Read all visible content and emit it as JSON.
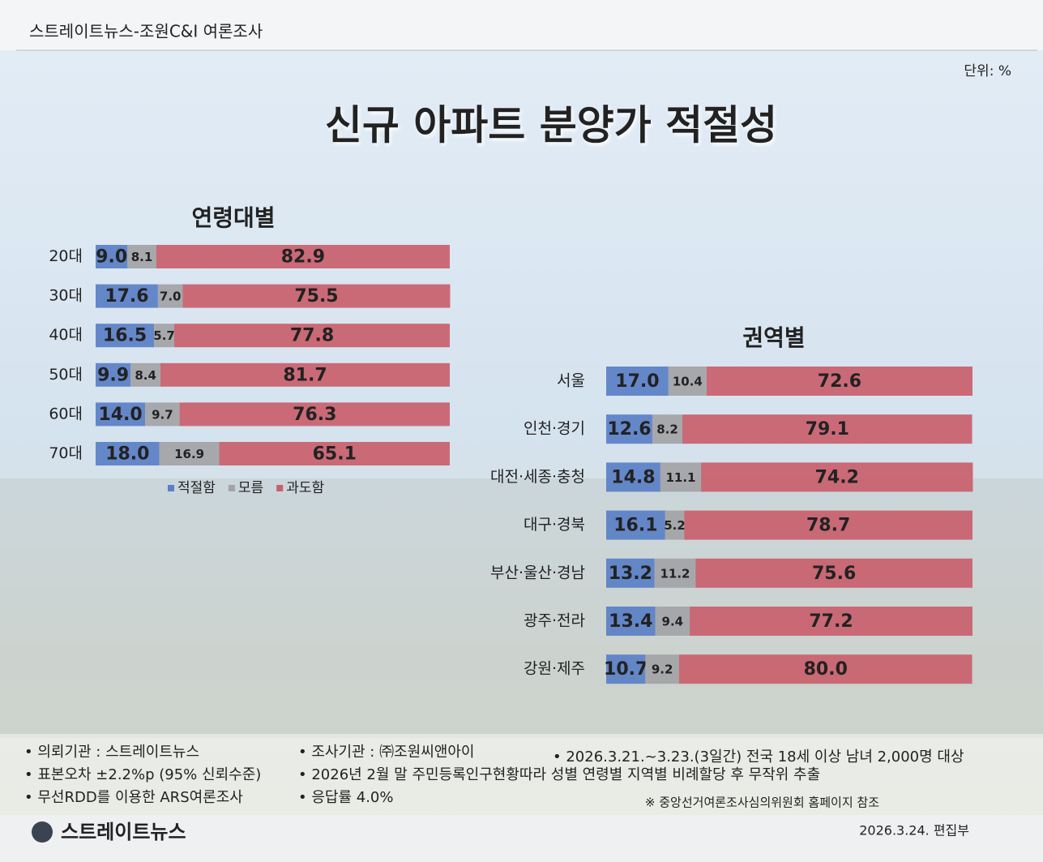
{
  "header": "스트레이트뉴스-조원C&I 여론조사",
  "unit": "단위: %",
  "title": "신규 아파트 분양가 적절성",
  "chart_data": [
    {
      "type": "stacked-bar",
      "title": "연령대별",
      "categories": [
        "20대",
        "30대",
        "40대",
        "50대",
        "60대",
        "70대"
      ],
      "xlim": [
        0,
        100
      ],
      "series": [
        {
          "name": "적절함",
          "color": "#5a7fc6",
          "values": [
            9.0,
            17.6,
            16.5,
            9.9,
            14.0,
            18.0
          ],
          "value_labels": [
            "9.0",
            "17.6",
            "16.5",
            "9.9",
            "14.0",
            "18.0"
          ]
        },
        {
          "name": "모름",
          "color": "#a3a3a6",
          "values": [
            8.1,
            7.0,
            5.7,
            8.4,
            9.7,
            16.9
          ],
          "value_labels": [
            "8.1",
            "7.0",
            "5.7",
            "8.4",
            "9.7",
            "16.9"
          ]
        },
        {
          "name": "과도함",
          "color": "#c95f6c",
          "values": [
            82.9,
            75.5,
            77.8,
            81.7,
            76.3,
            65.1
          ],
          "value_labels": [
            "82.9",
            "75.5",
            "77.8",
            "81.7",
            "76.3",
            "65.1"
          ]
        }
      ]
    },
    {
      "type": "stacked-bar",
      "title": "권역별",
      "categories": [
        "서울",
        "인천·경기",
        "대전·세종·충청",
        "대구·경북",
        "부산·울산·경남",
        "광주·전라",
        "강원·제주"
      ],
      "xlim": [
        0,
        100
      ],
      "series": [
        {
          "color": "#5a7fc6",
          "values": [
            17.0,
            12.6,
            14.8,
            16.1,
            13.2,
            13.4,
            10.7
          ],
          "value_labels": [
            "17.0",
            "12.6",
            "14.8",
            "16.1",
            "13.2",
            "13.4",
            "10.7"
          ]
        },
        {
          "color": "#a3a3a6",
          "values": [
            10.4,
            8.2,
            11.1,
            5.2,
            11.2,
            9.4,
            9.2
          ],
          "value_labels": [
            "10.4",
            "8.2",
            "11.1",
            "5.2",
            "11.2",
            "9.4",
            "9.2"
          ]
        },
        {
          "color": "#c95f6c",
          "values": [
            72.6,
            79.1,
            74.2,
            78.7,
            75.6,
            77.2,
            80.0
          ],
          "value_labels": [
            "72.6",
            "79.1",
            "74.2",
            "78.7",
            "75.6",
            "77.2",
            "80.0"
          ]
        }
      ]
    }
  ],
  "notes": [
    "• 의뢰기관 : 스트레이트뉴스",
    "• 표본오차 ±2.2%p (95% 신뢰수준)",
    "• 무선RDD를 이용한 ARS여론조사",
    "• 조사기관 : ㈜조원씨앤아이",
    "• 2026년 2월 말 주민등록인구현황따라 성별 연령별 지역별 비례할당 후 무작위 추출",
    "• 응답률 4.0%",
    "• 2026.3.21.~3.23.(3일간) 전국 18세 이상 남녀 2,000명 대상"
  ],
  "source_note": "※ 중앙선거여론조사심의위원회 홈페이지 참조",
  "footer": {
    "logo": "스트레이트뉴스",
    "date": "2026.3.24.  편집부"
  }
}
